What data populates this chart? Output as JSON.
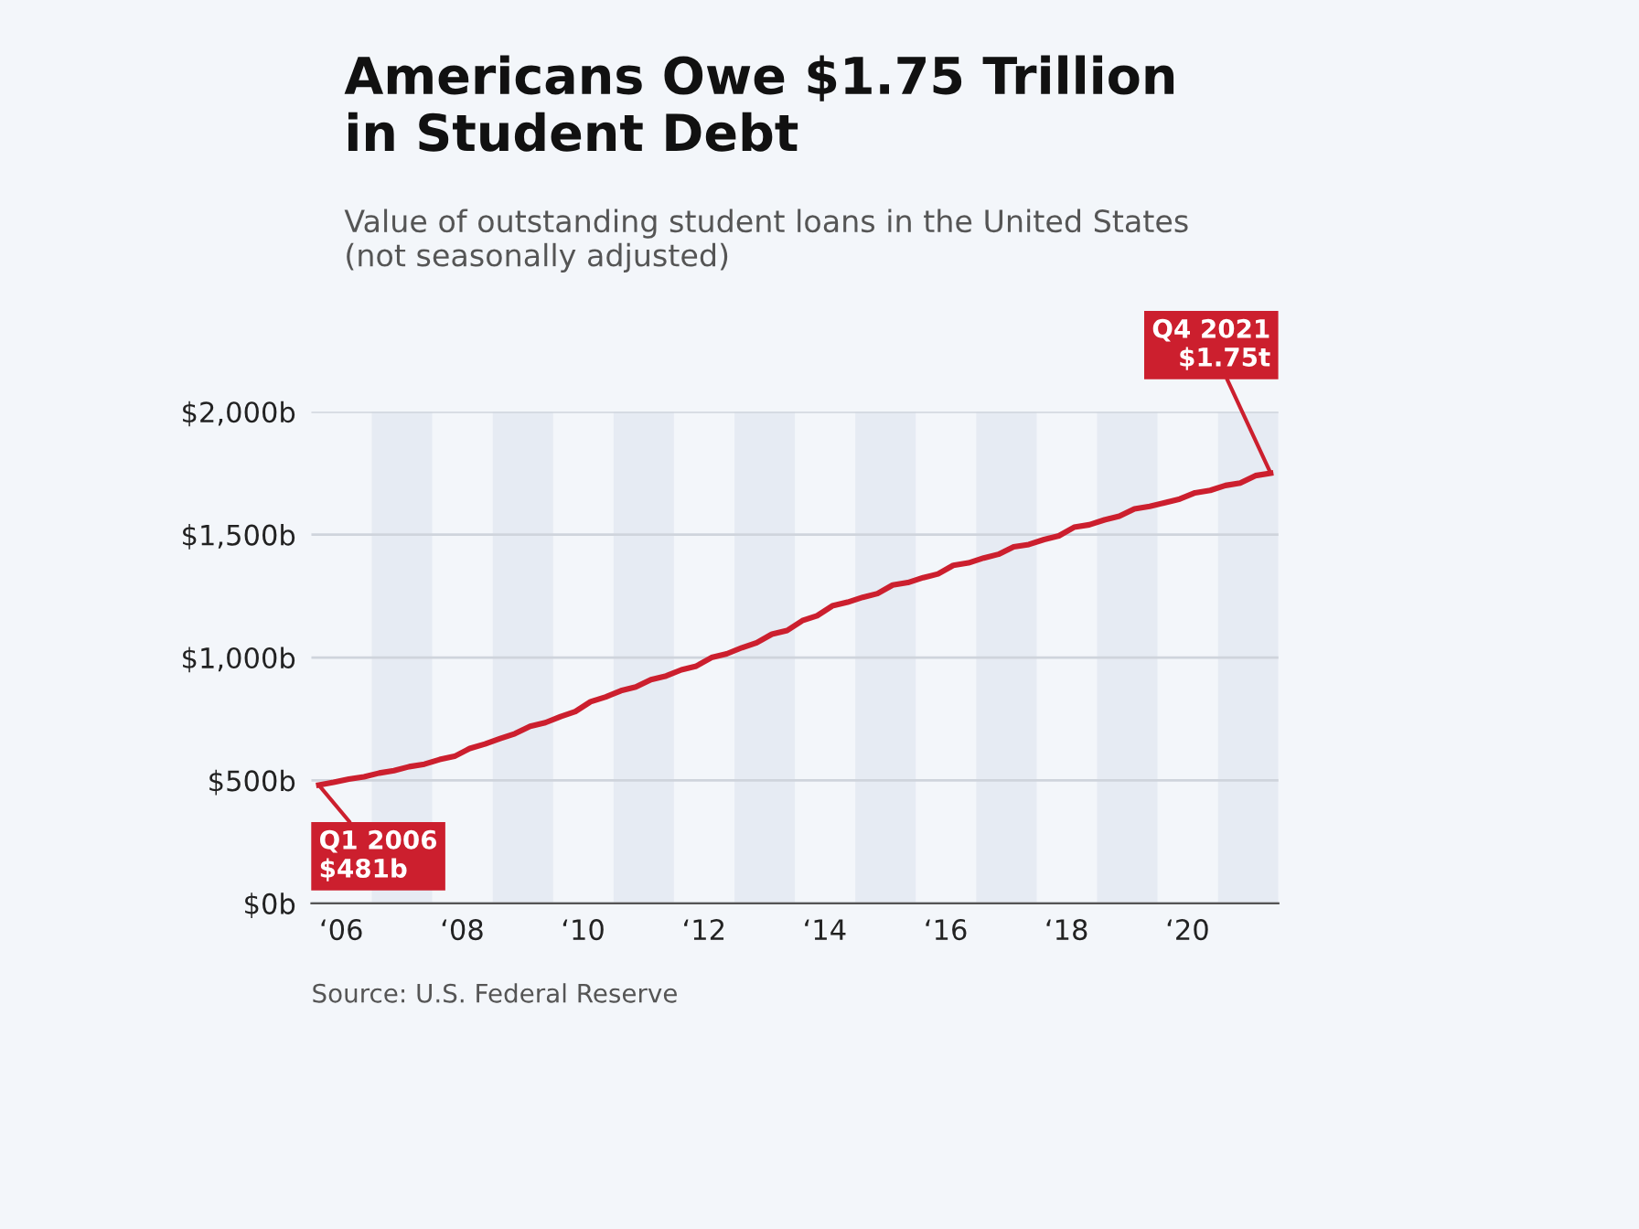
{
  "chart_data": {
    "type": "line",
    "title": "Americans Owe $1.75 Trillion\nin Student Debt",
    "subtitle": "Value of outstanding student loans in the United States\n(not seasonally adjusted)",
    "x": [
      "2006-02-15",
      "2006-05-15",
      "2006-08-15",
      "2006-11-15",
      "2007-02-15",
      "2007-05-15",
      "2007-08-15",
      "2007-11-15",
      "2008-02-15",
      "2008-05-15",
      "2008-08-15",
      "2008-11-15",
      "2009-02-15",
      "2009-05-15",
      "2009-08-15",
      "2009-11-15",
      "2010-02-15",
      "2010-05-15",
      "2010-08-15",
      "2010-11-15",
      "2011-02-15",
      "2011-05-15",
      "2011-08-15",
      "2011-11-15",
      "2012-02-15",
      "2012-05-15",
      "2012-08-15",
      "2012-11-15",
      "2013-02-15",
      "2013-05-15",
      "2013-08-15",
      "2013-11-15",
      "2014-02-15",
      "2014-05-15",
      "2014-08-15",
      "2014-11-15",
      "2015-02-15",
      "2015-05-15",
      "2015-08-15",
      "2015-11-15",
      "2016-02-15",
      "2016-05-15",
      "2016-08-15",
      "2016-11-15",
      "2017-02-15",
      "2017-05-15",
      "2017-08-15",
      "2017-11-15",
      "2018-02-15",
      "2018-05-15",
      "2018-08-15",
      "2018-11-15",
      "2019-02-15",
      "2019-05-15",
      "2019-08-15",
      "2019-11-15",
      "2020-02-15",
      "2020-05-15",
      "2020-08-15",
      "2020-11-15",
      "2021-02-15",
      "2021-05-15",
      "2021-08-15",
      "2021-11-15"
    ],
    "series": [
      {
        "color": "#cc1f2e",
        "values": [
          481,
          492,
          505,
          515,
          530,
          540,
          556,
          566,
          585,
          598,
          630,
          648,
          670,
          690,
          720,
          735,
          760,
          780,
          820,
          840,
          865,
          880,
          910,
          925,
          950,
          965,
          1000,
          1015,
          1040,
          1060,
          1095,
          1110,
          1150,
          1170,
          1210,
          1225,
          1245,
          1260,
          1295,
          1305,
          1325,
          1340,
          1375,
          1385,
          1405,
          1420,
          1450,
          1460,
          1480,
          1495,
          1530,
          1540,
          1560,
          1575,
          1605,
          1615,
          1630,
          1645,
          1670,
          1680,
          1700,
          1710,
          1740,
          1750
        ]
      }
    ],
    "xlim": [
      "2006-01-01",
      "2022-01-01"
    ],
    "xticks": [
      {
        "value": "2006-07-01",
        "label": "‘06"
      },
      {
        "value": "2008-07-01",
        "label": "‘08"
      },
      {
        "value": "2010-07-01",
        "label": "‘10"
      },
      {
        "value": "2012-07-01",
        "label": "‘12"
      },
      {
        "value": "2014-07-01",
        "label": "‘14"
      },
      {
        "value": "2016-07-01",
        "label": "‘16"
      },
      {
        "value": "2018-07-01",
        "label": "‘18"
      },
      {
        "value": "2020-07-01",
        "label": "‘20"
      }
    ],
    "ylim": [
      0,
      2000
    ],
    "yticks": [
      {
        "value": 0,
        "label": "$0b"
      },
      {
        "value": 500,
        "label": "$500b"
      },
      {
        "value": 1000,
        "label": "$1,000b"
      },
      {
        "value": 1500,
        "label": "$1,500b"
      },
      {
        "value": 2000,
        "label": "$2,000b"
      }
    ],
    "grid": "y",
    "marker": "none",
    "line_style": "solid",
    "legend": false,
    "bands": [
      {
        "axis": "x",
        "from": "2007-01-01",
        "to": "2008-01-01",
        "color": "#e6ebf3"
      },
      {
        "axis": "x",
        "from": "2009-01-01",
        "to": "2010-01-01",
        "color": "#e6ebf3"
      },
      {
        "axis": "x",
        "from": "2011-01-01",
        "to": "2012-01-01",
        "color": "#e6ebf3"
      },
      {
        "axis": "x",
        "from": "2013-01-01",
        "to": "2014-01-01",
        "color": "#e6ebf3"
      },
      {
        "axis": "x",
        "from": "2015-01-01",
        "to": "2016-01-01",
        "color": "#e6ebf3"
      },
      {
        "axis": "x",
        "from": "2017-01-01",
        "to": "2018-01-01",
        "color": "#e6ebf3"
      },
      {
        "axis": "x",
        "from": "2019-01-01",
        "to": "2020-01-01",
        "color": "#e6ebf3"
      },
      {
        "axis": "x",
        "from": "2021-01-01",
        "to": "2022-01-01",
        "color": "#e6ebf3"
      }
    ],
    "annotations": [
      {
        "text": "Q1 2006\n$481b",
        "x": "2006-02-15",
        "y": 481
      },
      {
        "text": "Q4 2021\n$1.75t",
        "x": "2021-11-15",
        "y": 1750
      },
      "Source: U.S. Federal Reserve"
    ]
  }
}
